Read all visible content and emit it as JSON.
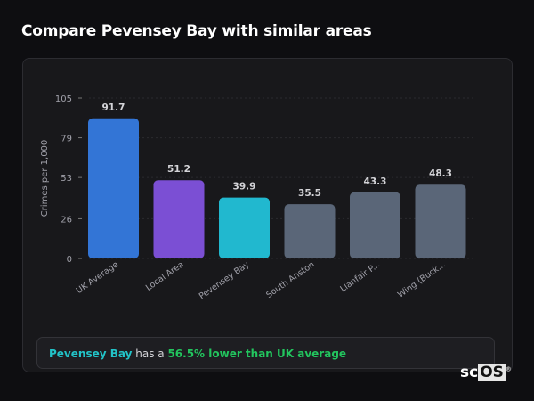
{
  "title": "Compare Pevensey Bay with similar areas",
  "chart_data": {
    "type": "bar",
    "ylabel": "Crimes per 1,000",
    "xlabel": "",
    "ylim": [
      0,
      105
    ],
    "yticks": [
      0,
      26,
      53,
      79,
      105
    ],
    "grid": true,
    "categories": [
      "UK Average",
      "Local Area",
      "Pevensey Bay",
      "South Anston",
      "Llanfair P...",
      "Wing (Buck..."
    ],
    "values": [
      91.7,
      51.2,
      39.9,
      35.5,
      43.3,
      48.3
    ],
    "value_labels": [
      "91.7",
      "51.2",
      "39.9",
      "35.5",
      "43.3",
      "48.3"
    ],
    "colors": [
      "#3375d6",
      "#7b4fd4",
      "#21b8cf",
      "#5a6678",
      "#5a6678",
      "#5a6678"
    ]
  },
  "summary": {
    "area": "Pevensey Bay",
    "connector": " has a ",
    "comparison": "56.5% lower than UK average"
  },
  "logo": {
    "text_a": "sc",
    "text_b": "OS",
    "mark": "®"
  }
}
